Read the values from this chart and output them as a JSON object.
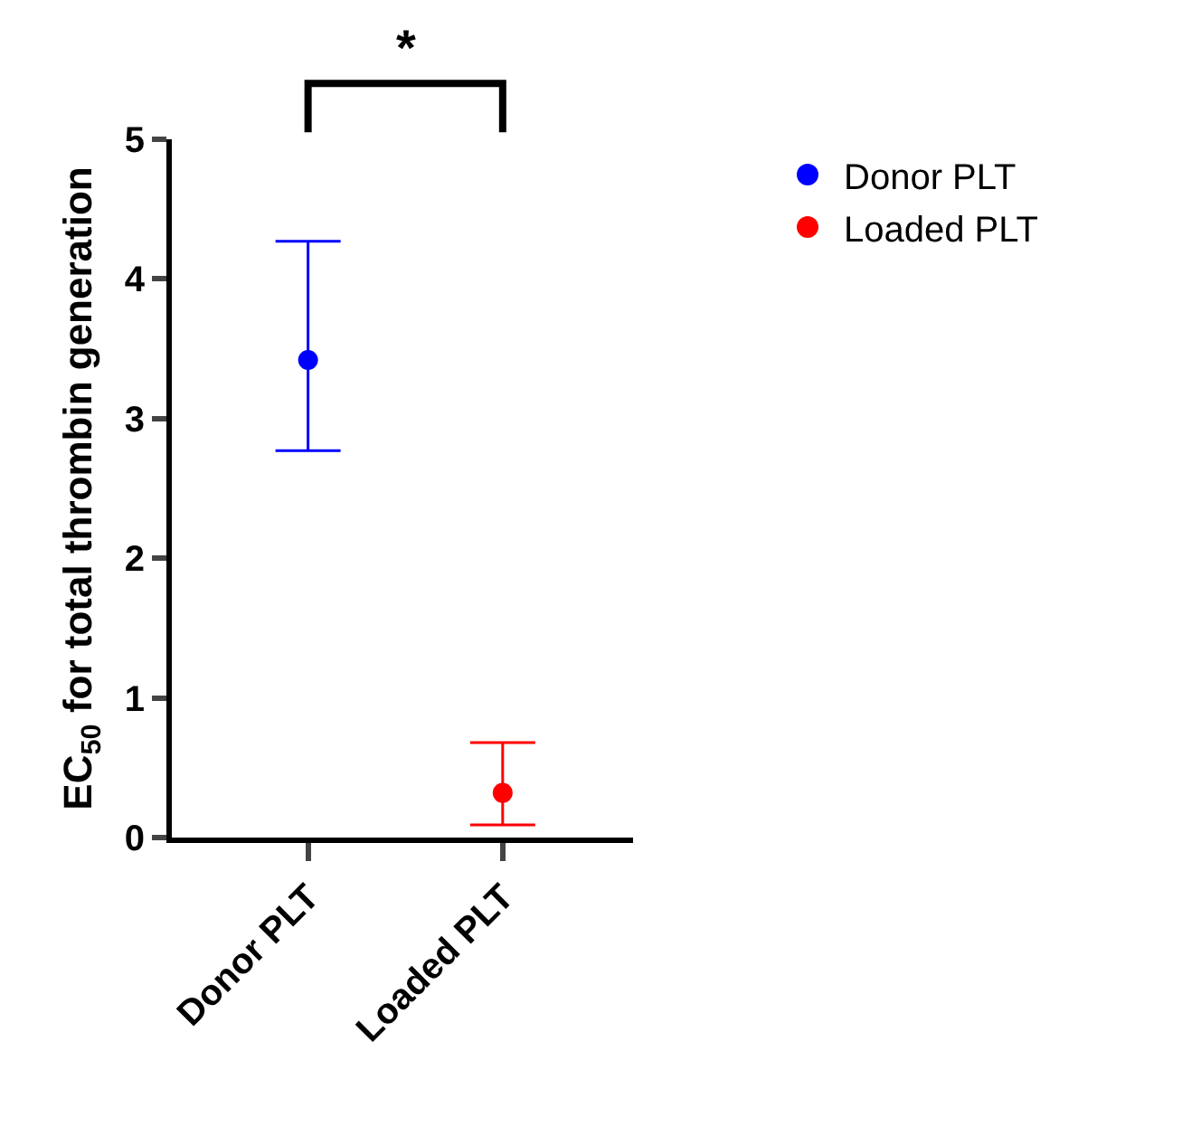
{
  "chart_data": {
    "type": "scatter",
    "ylabel": "EC$_{50}$ for total thrombin generation",
    "categories": [
      "Donor PLT",
      "Loaded PLT"
    ],
    "series": [
      {
        "name": "Donor PLT",
        "color": "#0000ff",
        "x": [
          "Donor PLT"
        ],
        "values": [
          3.42
        ],
        "errors": [
          [
            2.77,
            4.27
          ]
        ]
      },
      {
        "name": "Loaded PLT",
        "color": "#ff0000",
        "x": [
          "Loaded PLT"
        ],
        "values": [
          0.32
        ],
        "errors": [
          [
            0.09,
            0.68
          ]
        ]
      }
    ],
    "ylim": [
      0,
      5
    ],
    "yticks": [
      0,
      1,
      2,
      3,
      4,
      5
    ],
    "legend": "top right",
    "marker": "circle",
    "annotations": [
      "*"
    ]
  }
}
